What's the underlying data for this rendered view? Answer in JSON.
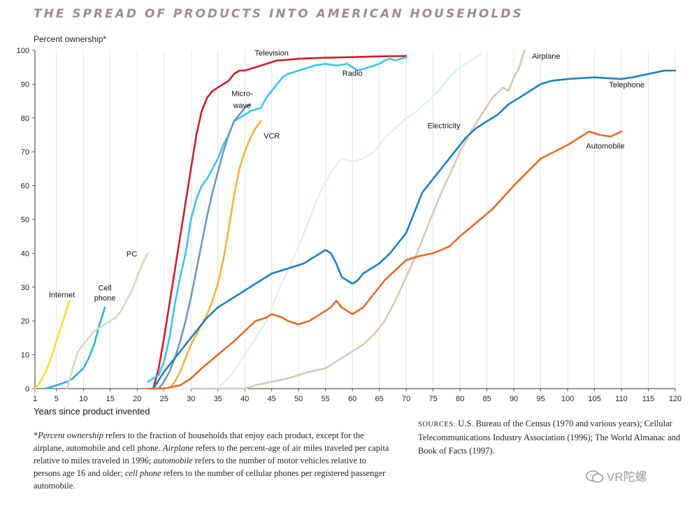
{
  "chart_data": {
    "type": "line",
    "title": "THE SPREAD OF PRODUCTS INTO AMERICAN HOUSEHOLDS",
    "ylabel": "Percent ownership*",
    "xlabel": "Years since product invented",
    "xlim": [
      1,
      120
    ],
    "ylim": [
      0,
      100
    ],
    "x_ticks": [
      1,
      5,
      10,
      15,
      20,
      25,
      30,
      35,
      40,
      45,
      50,
      55,
      60,
      65,
      70,
      75,
      80,
      85,
      90,
      95,
      100,
      105,
      110,
      115,
      120
    ],
    "y_ticks": [
      0,
      10,
      20,
      30,
      40,
      50,
      60,
      70,
      80,
      90,
      100
    ],
    "grid": "vertical",
    "series": [
      {
        "name": "Internet",
        "color": "#f3e03c",
        "x": [
          1,
          2,
          3,
          4,
          5,
          6,
          7,
          7.5
        ],
        "y": [
          0,
          2,
          5,
          9,
          14,
          19,
          24,
          26
        ]
      },
      {
        "name": "Cell phone",
        "color": "#2ab3e0",
        "x": [
          3,
          5,
          7,
          8,
          9,
          10,
          11,
          12,
          13,
          14
        ],
        "y": [
          0,
          1,
          2,
          3,
          4.5,
          6,
          9,
          13,
          19,
          24
        ]
      },
      {
        "name": "PC",
        "color": "#d8d8c0",
        "x": [
          7,
          8,
          9,
          10,
          11,
          12,
          13,
          14,
          15,
          16,
          17,
          18,
          19,
          20,
          21,
          22
        ],
        "y": [
          0,
          6,
          11,
          13,
          15,
          17,
          18,
          19,
          20,
          21,
          23,
          26,
          29,
          33,
          37,
          40
        ]
      },
      {
        "name": "Television",
        "color": "#c8202a",
        "x": [
          23,
          24,
          25,
          26,
          27,
          28,
          29,
          30,
          31,
          32,
          33,
          34,
          35,
          36,
          37,
          38,
          39,
          40,
          41,
          42,
          43,
          44,
          45,
          46,
          48,
          50,
          55,
          60,
          65,
          70
        ],
        "y": [
          0,
          6,
          15,
          25,
          35,
          45,
          55,
          65,
          75,
          82,
          86,
          88,
          89,
          90,
          91,
          93,
          94,
          94,
          94.5,
          95,
          95.5,
          96,
          96.5,
          97,
          97.2,
          97.5,
          97.8,
          98,
          98.2,
          98.3
        ]
      },
      {
        "name": "Radio",
        "color": "#3cc3e8",
        "x": [
          22,
          23,
          24,
          25,
          26,
          27,
          28,
          29,
          30,
          31,
          32,
          33,
          34,
          35,
          36,
          37,
          38,
          39,
          40,
          41,
          42,
          43,
          44,
          45,
          46,
          47,
          48,
          50,
          52,
          53,
          55,
          57,
          59,
          61,
          63,
          65,
          66,
          67,
          68,
          69,
          70
        ],
        "y": [
          2,
          3,
          4,
          8,
          15,
          25,
          33,
          40,
          50,
          56,
          60,
          62,
          65,
          68,
          72,
          75,
          79,
          80,
          81,
          82,
          82.5,
          83,
          86,
          88,
          90,
          92,
          93,
          94,
          95,
          95.5,
          96,
          95.5,
          96,
          94,
          95,
          96,
          97,
          97.5,
          97,
          97.5,
          98
        ]
      },
      {
        "name": "Microwave",
        "color": "#6a9ab8",
        "x": [
          24,
          25,
          26,
          27,
          28,
          29,
          30,
          31,
          32,
          33,
          34,
          35,
          36,
          37,
          38,
          39,
          40,
          41
        ],
        "y": [
          0,
          2,
          5,
          9,
          14,
          20,
          27,
          35,
          43,
          51,
          58,
          64,
          70,
          75,
          79,
          81,
          83,
          84
        ]
      },
      {
        "name": "VCR",
        "color": "#f0b43a",
        "x": [
          26,
          27,
          28,
          29,
          30,
          31,
          32,
          33,
          34,
          35,
          36,
          37,
          38,
          39,
          40,
          41,
          42,
          43
        ],
        "y": [
          0,
          2,
          5,
          9,
          13,
          16,
          19,
          22,
          26,
          31,
          38,
          47,
          57,
          65,
          70,
          74,
          77,
          79
        ]
      },
      {
        "name": "Electricity",
        "color": "#e4eef2",
        "x": [
          24,
          30,
          35,
          38,
          40,
          42,
          44,
          46,
          48,
          50,
          52,
          54,
          56,
          58,
          60,
          62,
          64,
          66,
          68,
          70,
          72,
          74,
          76,
          78,
          80,
          82,
          84
        ],
        "y": [
          0,
          0,
          0,
          5,
          10,
          15,
          20,
          28,
          35,
          42,
          50,
          58,
          64,
          68,
          67,
          68,
          70,
          74,
          77,
          80,
          82,
          85,
          88,
          92,
          95,
          97,
          99
        ]
      },
      {
        "name": "Airplane",
        "color": "#d9c6b9",
        "x": [
          30,
          35,
          40,
          42,
          45,
          48,
          50,
          52,
          55,
          57,
          60,
          62,
          64,
          66,
          68,
          70,
          72,
          74,
          76,
          78,
          80,
          82,
          84,
          86,
          88,
          89,
          90,
          91,
          92
        ],
        "y": [
          0,
          0,
          0,
          1,
          2,
          3,
          4,
          5,
          6,
          8,
          11,
          13,
          16,
          20,
          26,
          33,
          40,
          48,
          56,
          63,
          70,
          76,
          81,
          86,
          89,
          88,
          92,
          95,
          100
        ]
      },
      {
        "name": "Telephone",
        "color": "#1f7fbf",
        "x": [
          23,
          25,
          27,
          29,
          31,
          33,
          35,
          37,
          39,
          41,
          43,
          45,
          47,
          49,
          51,
          53,
          55,
          56,
          57,
          58,
          59,
          60,
          61,
          62,
          63,
          65,
          67,
          69,
          70,
          71,
          72,
          73,
          75,
          77,
          79,
          81,
          83,
          85,
          87,
          89,
          91,
          93,
          95,
          97,
          100,
          105,
          110,
          112,
          115,
          118,
          120
        ],
        "y": [
          0,
          5,
          9,
          13,
          17,
          21,
          24,
          26,
          28,
          30,
          32,
          34,
          35,
          36,
          37,
          39,
          41,
          40,
          37,
          33,
          32,
          31,
          32,
          34,
          35,
          37,
          40,
          44,
          46,
          50,
          54,
          58,
          62,
          66,
          70,
          74,
          77,
          79,
          81,
          84,
          86,
          88,
          90,
          91,
          91.5,
          92,
          91.5,
          92,
          93,
          94,
          94
        ]
      },
      {
        "name": "Automobile",
        "color": "#e06a2a",
        "x": [
          22,
          25,
          28,
          30,
          32,
          35,
          38,
          40,
          42,
          44,
          45,
          47,
          48,
          50,
          52,
          54,
          55,
          56,
          57,
          58,
          59,
          60,
          62,
          64,
          66,
          68,
          70,
          72,
          75,
          78,
          80,
          83,
          86,
          90,
          95,
          100,
          104,
          105,
          106,
          108,
          110
        ],
        "y": [
          0,
          0,
          1,
          3,
          6,
          10,
          14,
          17,
          20,
          21,
          22,
          21,
          20,
          19,
          20,
          22,
          23,
          24,
          26,
          24,
          23,
          22,
          24,
          28,
          32,
          35,
          38,
          39,
          40,
          42,
          45,
          49,
          53,
          60,
          68,
          72,
          76,
          75.5,
          75,
          74.5,
          76
        ]
      }
    ],
    "annotations": [
      {
        "text": "Television",
        "x": 45,
        "y": 98.5
      },
      {
        "text": "Radio",
        "x": 60,
        "y": 92.5
      },
      {
        "text": "Micro-",
        "x": 39.5,
        "y": 86.5
      },
      {
        "text": "wave",
        "x": 39.5,
        "y": 83
      },
      {
        "text": "VCR",
        "x": 45,
        "y": 74
      },
      {
        "text": "Electricity",
        "x": 77,
        "y": 77
      },
      {
        "text": "Airplane",
        "x": 96,
        "y": 97.5
      },
      {
        "text": "Telephone",
        "x": 111,
        "y": 89
      },
      {
        "text": "Automobile",
        "x": 107,
        "y": 71
      },
      {
        "text": "PC",
        "x": 19,
        "y": 39
      },
      {
        "text": "Cell",
        "x": 14,
        "y": 29
      },
      {
        "text": "phone",
        "x": 14,
        "y": 26
      },
      {
        "text": "Internet",
        "x": 6,
        "y": 27
      }
    ]
  },
  "footnote": {
    "p1": "*",
    "e1": "Percent ownership",
    "p2": " refers to the fraction of households that enjoy each product, except for the airplane, automobile and cell phone. ",
    "e2": "Airplane",
    "p3": " refers to the percent-age of air miles traveled per capita relative to miles traveled in 1996; ",
    "e3": "automobile",
    "p4": " refers to the number of motor vehicles relative to persons age 16 and older; ",
    "e4": "cell phone",
    "p5": " refers to the number of cellular phones per registered passenger automobile."
  },
  "sources": {
    "label": "SOURCES:",
    "text": " U.S. Bureau of the Census (1970 and various years); Cellular Telecommunications Industry Association (1996); The World Almanac and Book of Facts (1997)."
  },
  "watermark": {
    "text": "VR陀螺"
  }
}
